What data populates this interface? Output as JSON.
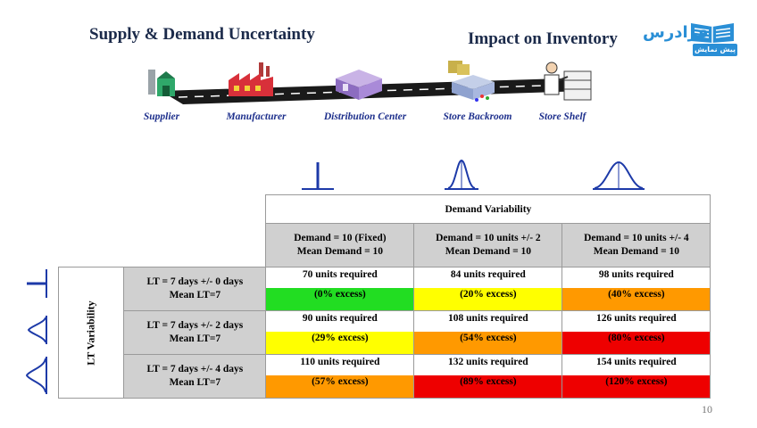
{
  "slide": {
    "title_left": "Supply & Demand Uncertainty",
    "title_right": "Impact on Inventory",
    "page_number": "10"
  },
  "watermark": {
    "brand": "فرادرس",
    "tag": "پیش نمایش"
  },
  "supply_chain": {
    "stages": [
      "Supplier",
      "Manufacturer",
      "Distribution Center",
      "Store Backroom",
      "Store Shelf"
    ]
  },
  "table": {
    "header": "Demand Variability",
    "row_axis_label": "LT Variability",
    "columns": [
      {
        "line1": "Demand = 10 (Fixed)",
        "line2": "Mean Demand = 10"
      },
      {
        "line1": "Demand = 10 units +/- 2",
        "line2": "Mean Demand = 10"
      },
      {
        "line1": "Demand = 10 units +/- 4",
        "line2": "Mean Demand = 10"
      }
    ],
    "rows": [
      {
        "line1": "LT = 7 days +/- 0 days",
        "line2": "Mean LT=7",
        "cells": [
          {
            "required": "70 units required",
            "excess": "(0% excess)",
            "color": "#22dd22"
          },
          {
            "required": "84 units required",
            "excess": "(20% excess)",
            "color": "#ffff00"
          },
          {
            "required": "98 units required",
            "excess": "(40% excess)",
            "color": "#ff9900"
          }
        ]
      },
      {
        "line1": "LT = 7 days +/- 2 days",
        "line2": "Mean LT=7",
        "cells": [
          {
            "required": "90 units required",
            "excess": "(29% excess)",
            "color": "#ffff00"
          },
          {
            "required": "108 units required",
            "excess": "(54% excess)",
            "color": "#ff9900"
          },
          {
            "required": "126 units required",
            "excess": "(80% excess)",
            "color": "#ee0000"
          }
        ]
      },
      {
        "line1": "LT = 7 days +/- 4 days",
        "line2": "Mean LT=7",
        "cells": [
          {
            "required": "110 units required",
            "excess": "(57% excess)",
            "color": "#ff9900"
          },
          {
            "required": "132 units required",
            "excess": "(89% excess)",
            "color": "#ee0000"
          },
          {
            "required": "154 units required",
            "excess": "(120% excess)",
            "color": "#ee0000"
          }
        ]
      }
    ]
  }
}
